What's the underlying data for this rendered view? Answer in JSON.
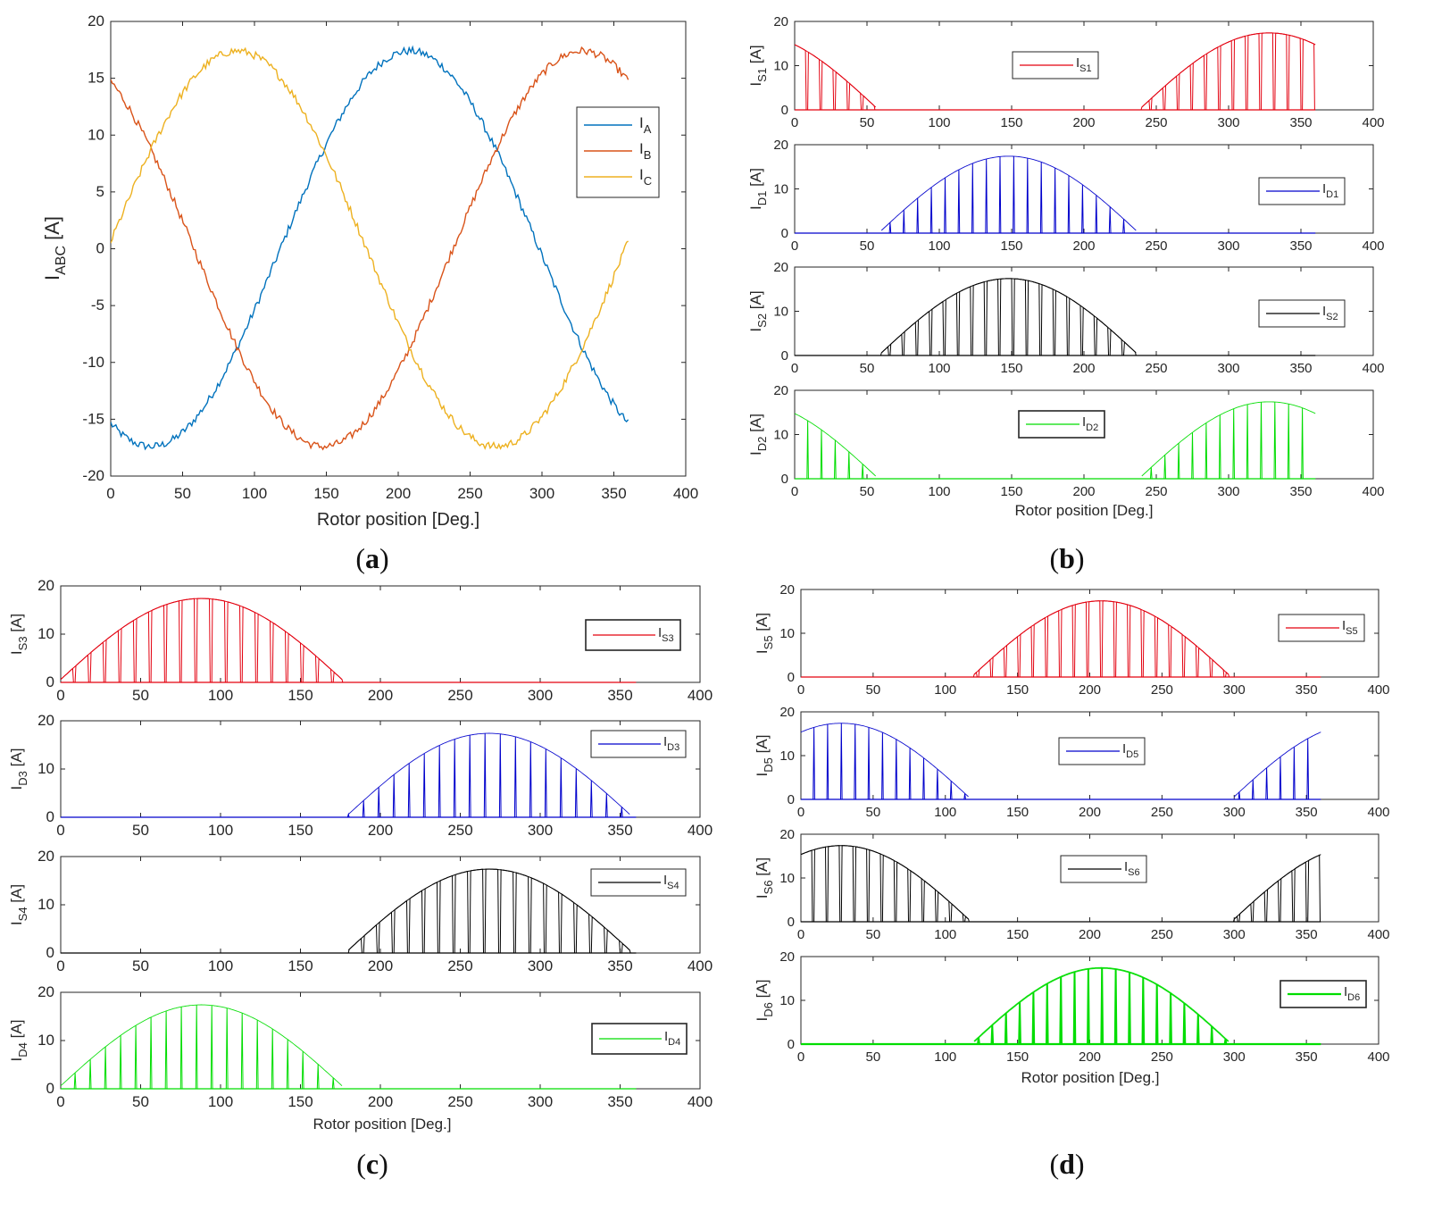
{
  "figure": {
    "panel_labels": {
      "a": {
        "open": "(",
        "letter": "a",
        "close": ")"
      },
      "b": {
        "open": "(",
        "letter": "b",
        "close": ")"
      },
      "c": {
        "open": "(",
        "letter": "c",
        "close": ")"
      },
      "d": {
        "open": "(",
        "letter": "d",
        "close": ")"
      }
    }
  },
  "chart_data": [
    {
      "id": "a",
      "type": "line",
      "xlabel": "Rotor position [Deg.]",
      "ylabel": {
        "main": "I",
        "sub": "ABC",
        "unit": " [A]"
      },
      "xlim": [
        0,
        400
      ],
      "ylim": [
        -20,
        20
      ],
      "xticks": [
        "0",
        "50",
        "100",
        "150",
        "200",
        "250",
        "300",
        "350",
        "400"
      ],
      "yticks": [
        "-20",
        "-15",
        "-10",
        "-5",
        "0",
        "5",
        "10",
        "15",
        "20"
      ],
      "legend_position": "right",
      "x_range_deg": [
        0,
        360
      ],
      "series": [
        {
          "name": "I",
          "sub": "A",
          "color": "#0072BD",
          "amplitude": 17.4,
          "phase_deg": 208,
          "noise": 0.35
        },
        {
          "name": "I",
          "sub": "B",
          "color": "#D95319",
          "amplitude": 17.4,
          "phase_deg": 328,
          "noise": 0.35
        },
        {
          "name": "I",
          "sub": "C",
          "color": "#EDB120",
          "amplitude": 17.4,
          "phase_deg": 88,
          "noise": 0.35
        }
      ]
    },
    {
      "id": "b",
      "type": "line",
      "xlabel": "Rotor position [Deg.]",
      "xlim": [
        0,
        400
      ],
      "ylim": [
        0,
        20
      ],
      "xticks": [
        "0",
        "50",
        "100",
        "150",
        "200",
        "250",
        "300",
        "350",
        "400"
      ],
      "yticks": [
        "0",
        "10",
        "20"
      ],
      "subplots": [
        {
          "ylabel": {
            "main": "I",
            "sub": "S1",
            "unit": " [A]"
          },
          "legend": {
            "main": "I",
            "sub": "S1"
          },
          "legend_position": "center",
          "color": "#E3000F",
          "phase_deg": 328,
          "kind": "switch",
          "line_width": 1
        },
        {
          "ylabel": {
            "main": "I",
            "sub": "D1",
            "unit": " [A]"
          },
          "legend": {
            "main": "I",
            "sub": "D1"
          },
          "legend_position": "right",
          "color": "#0000CC",
          "phase_deg": 148,
          "kind": "diode",
          "line_width": 1
        },
        {
          "ylabel": {
            "main": "I",
            "sub": "S2",
            "unit": " [A]"
          },
          "legend": {
            "main": "I",
            "sub": "S2"
          },
          "legend_position": "right",
          "color": "#000000",
          "phase_deg": 148,
          "kind": "switch",
          "line_width": 1
        },
        {
          "ylabel": {
            "main": "I",
            "sub": "D2",
            "unit": " [A]"
          },
          "legend": {
            "main": "I",
            "sub": "D2"
          },
          "legend_position": "center",
          "color": "#00DD00",
          "phase_deg": 328,
          "kind": "diode",
          "line_width": 1
        }
      ]
    },
    {
      "id": "c",
      "type": "line",
      "xlabel": "Rotor position [Deg.]",
      "xlim": [
        0,
        400
      ],
      "ylim": [
        0,
        20
      ],
      "xticks": [
        "0",
        "50",
        "100",
        "150",
        "200",
        "250",
        "300",
        "350",
        "400"
      ],
      "yticks": [
        "0",
        "10",
        "20"
      ],
      "subplots": [
        {
          "ylabel": {
            "main": "I",
            "sub": "S3",
            "unit": " [A]"
          },
          "legend": {
            "main": "I",
            "sub": "S3"
          },
          "legend_position": "right",
          "color": "#E3000F",
          "phase_deg": 88,
          "kind": "switch",
          "line_width": 1
        },
        {
          "ylabel": {
            "main": "I",
            "sub": "D3",
            "unit": " [A]"
          },
          "legend": {
            "main": "I",
            "sub": "D3"
          },
          "legend_position": "top-right",
          "color": "#0000CC",
          "phase_deg": 268,
          "kind": "diode",
          "line_width": 1
        },
        {
          "ylabel": {
            "main": "I",
            "sub": "S4",
            "unit": " [A]"
          },
          "legend": {
            "main": "I",
            "sub": "S4"
          },
          "legend_position": "top-right",
          "color": "#000000",
          "phase_deg": 268,
          "kind": "switch",
          "line_width": 1
        },
        {
          "ylabel": {
            "main": "I",
            "sub": "D4",
            "unit": " [A]"
          },
          "legend": {
            "main": "I",
            "sub": "D4"
          },
          "legend_position": "right",
          "color": "#00DD00",
          "phase_deg": 88,
          "kind": "diode",
          "line_width": 1
        }
      ]
    },
    {
      "id": "d",
      "type": "line",
      "xlabel": "Rotor position [Deg.]",
      "xlim": [
        0,
        400
      ],
      "ylim": [
        0,
        20
      ],
      "xticks": [
        "0",
        "50",
        "100",
        "150",
        "200",
        "250",
        "300",
        "350",
        "400"
      ],
      "yticks": [
        "0",
        "10",
        "20"
      ],
      "subplots": [
        {
          "ylabel": {
            "main": "I",
            "sub": "S5",
            "unit": " [A]"
          },
          "legend": {
            "main": "I",
            "sub": "S5"
          },
          "legend_position": "right",
          "color": "#E3000F",
          "phase_deg": 208,
          "kind": "switch",
          "line_width": 1
        },
        {
          "ylabel": {
            "main": "I",
            "sub": "D5",
            "unit": " [A]"
          },
          "legend": {
            "main": "I",
            "sub": "D5"
          },
          "legend_position": "center",
          "color": "#0000CC",
          "phase_deg": 28,
          "kind": "diode",
          "line_width": 1
        },
        {
          "ylabel": {
            "main": "I",
            "sub": "S6",
            "unit": " [A]"
          },
          "legend": {
            "main": "I",
            "sub": "S6"
          },
          "legend_position": "center",
          "color": "#000000",
          "phase_deg": 28,
          "kind": "switch",
          "line_width": 1
        },
        {
          "ylabel": {
            "main": "I",
            "sub": "D6",
            "unit": " [A]"
          },
          "legend": {
            "main": "I",
            "sub": "D6"
          },
          "legend_position": "right",
          "color": "#00DD00",
          "phase_deg": 208,
          "kind": "diode",
          "line_width": 2
        }
      ]
    }
  ]
}
